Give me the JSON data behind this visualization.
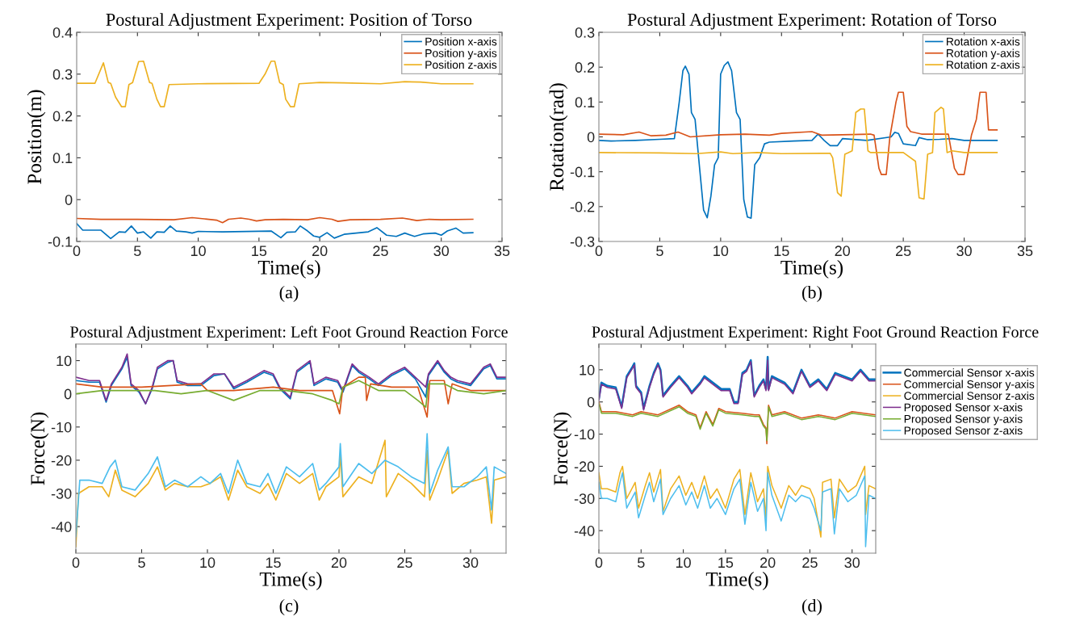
{
  "chart_data": [
    {
      "type": "line",
      "title": "Postural Adjustment Experiment: Position of Torso",
      "xlabel": "Time(s)",
      "ylabel": "Position(m)",
      "xlim": [
        0,
        35
      ],
      "ylim": [
        -0.1,
        0.4
      ],
      "xticks": [
        0,
        5,
        10,
        15,
        20,
        25,
        30,
        35
      ],
      "yticks": [
        -0.1,
        0,
        0.1,
        0.2,
        0.3,
        0.4
      ],
      "legend": "top right",
      "annotations": [
        "(a)"
      ],
      "series": [
        {
          "name": "Position x-axis",
          "color": "#0072bd",
          "x": [
            0,
            0.5,
            2,
            2.8,
            3.5,
            4.0,
            4.5,
            5.0,
            5.5,
            6.1,
            6.6,
            7.2,
            7.7,
            8.2,
            9,
            9.5,
            10,
            12,
            14,
            16,
            16.8,
            17.3,
            18.0,
            18.4,
            19,
            19.5,
            20.0,
            20.6,
            21.2,
            22,
            23,
            24,
            24.7,
            25.5,
            26.3,
            27,
            27.8,
            28.5,
            29.5,
            30,
            30.5,
            31.2,
            31.8,
            32.6
          ],
          "values": [
            -0.057,
            -0.073,
            -0.073,
            -0.093,
            -0.077,
            -0.078,
            -0.063,
            -0.08,
            -0.077,
            -0.092,
            -0.077,
            -0.078,
            -0.063,
            -0.075,
            -0.077,
            -0.08,
            -0.076,
            -0.077,
            -0.076,
            -0.075,
            -0.091,
            -0.078,
            -0.077,
            -0.063,
            -0.075,
            -0.087,
            -0.09,
            -0.079,
            -0.092,
            -0.083,
            -0.08,
            -0.077,
            -0.067,
            -0.085,
            -0.088,
            -0.08,
            -0.088,
            -0.082,
            -0.08,
            -0.085,
            -0.075,
            -0.068,
            -0.08,
            -0.079
          ]
        },
        {
          "name": "Position y-axis",
          "color": "#d95319",
          "x": [
            0,
            2,
            5,
            8,
            9.5,
            10.5,
            11.5,
            12,
            12.5,
            13.5,
            14.2,
            14.8,
            15.5,
            17,
            19,
            20,
            21,
            21.5,
            22.5,
            25,
            26.8,
            28,
            29,
            30,
            32.6
          ],
          "values": [
            -0.045,
            -0.047,
            -0.047,
            -0.048,
            -0.043,
            -0.046,
            -0.049,
            -0.055,
            -0.047,
            -0.044,
            -0.047,
            -0.051,
            -0.048,
            -0.047,
            -0.048,
            -0.043,
            -0.047,
            -0.052,
            -0.048,
            -0.047,
            -0.044,
            -0.05,
            -0.047,
            -0.048,
            -0.047
          ]
        },
        {
          "name": "Position z-axis",
          "color": "#edb120",
          "x": [
            0,
            1.5,
            2.2,
            2.6,
            2.8,
            3.2,
            3.7,
            4.0,
            4.3,
            4.6,
            5.1,
            5.5,
            6.0,
            6.2,
            6.6,
            6.9,
            7.2,
            7.6,
            10,
            15,
            15.5,
            16.0,
            16.3,
            16.7,
            17.0,
            17.2,
            17.6,
            17.9,
            18.3,
            20,
            22,
            25,
            27,
            28.3,
            30,
            32.6
          ],
          "values": [
            0.278,
            0.278,
            0.327,
            0.28,
            0.278,
            0.245,
            0.222,
            0.222,
            0.275,
            0.28,
            0.33,
            0.331,
            0.28,
            0.278,
            0.24,
            0.222,
            0.222,
            0.275,
            0.277,
            0.278,
            0.3,
            0.331,
            0.331,
            0.28,
            0.275,
            0.24,
            0.222,
            0.222,
            0.277,
            0.28,
            0.279,
            0.277,
            0.282,
            0.281,
            0.277,
            0.277
          ]
        }
      ]
    },
    {
      "type": "line",
      "title": "Postural Adjustment Experiment: Rotation of Torso",
      "xlabel": "Time(s)",
      "ylabel": "Rotation(rad)",
      "xlim": [
        0,
        35
      ],
      "ylim": [
        -0.3,
        0.3
      ],
      "xticks": [
        0,
        5,
        10,
        15,
        20,
        25,
        30,
        35
      ],
      "yticks": [
        -0.3,
        -0.2,
        -0.1,
        0,
        0.1,
        0.2,
        0.3
      ],
      "legend": "top right",
      "annotations": [
        "(b)"
      ],
      "series": [
        {
          "name": "Rotation x-axis",
          "color": "#0072bd",
          "x": [
            0,
            1,
            3,
            5,
            6.2,
            6.6,
            6.9,
            7.1,
            7.4,
            7.6,
            7.9,
            8.3,
            8.6,
            8.9,
            9.2,
            9.5,
            9.8,
            10.0,
            10.3,
            10.6,
            10.9,
            11.3,
            11.6,
            11.9,
            12.2,
            12.5,
            12.8,
            13.2,
            13.6,
            14,
            16,
            17.5,
            18.0,
            18.5,
            19,
            19.6,
            20.0,
            22,
            24,
            24.3,
            24.6,
            25,
            26,
            26.3,
            27,
            28,
            29,
            30,
            32.7
          ],
          "values": [
            -0.01,
            -0.012,
            -0.01,
            -0.007,
            -0.005,
            0.1,
            0.19,
            0.203,
            0.18,
            0.07,
            0.05,
            -0.1,
            -0.21,
            -0.232,
            -0.17,
            -0.08,
            -0.06,
            0.18,
            0.205,
            0.215,
            0.19,
            0.07,
            0.05,
            -0.18,
            -0.23,
            -0.233,
            -0.08,
            -0.06,
            -0.02,
            -0.015,
            -0.012,
            -0.01,
            0.008,
            -0.01,
            -0.025,
            -0.025,
            -0.005,
            -0.01,
            0.0,
            0.013,
            0.01,
            -0.02,
            -0.025,
            -0.002,
            -0.008,
            -0.007,
            -0.005,
            -0.01,
            -0.01
          ]
        },
        {
          "name": "Rotation y-axis",
          "color": "#d95319",
          "x": [
            0,
            2,
            3.3,
            4.3,
            5.5,
            6.5,
            7.5,
            10,
            12,
            14,
            15,
            17.5,
            18.3,
            20,
            22.3,
            22.6,
            23.0,
            23.2,
            23.6,
            23.9,
            24.4,
            24.6,
            25.0,
            25.3,
            25.6,
            26.5,
            28,
            28.7,
            29.2,
            29.5,
            30.0,
            30.3,
            30.6,
            31.0,
            31.3,
            31.8,
            32.0,
            32.7
          ],
          "values": [
            0.008,
            0.006,
            0.014,
            0.003,
            0.005,
            0.014,
            0.0,
            0.006,
            0.008,
            0.005,
            0.01,
            0.015,
            0.005,
            0.006,
            0.008,
            0.005,
            -0.09,
            -0.108,
            -0.108,
            0.0,
            0.1,
            0.128,
            0.128,
            0.03,
            0.015,
            0.008,
            0.008,
            0.008,
            -0.09,
            -0.108,
            -0.108,
            -0.05,
            0.005,
            0.05,
            0.128,
            0.128,
            0.02,
            0.02
          ]
        },
        {
          "name": "Rotation z-axis",
          "color": "#edb120",
          "x": [
            0,
            5,
            8,
            10,
            11,
            13,
            15,
            19,
            19.2,
            19.6,
            19.9,
            20.2,
            20.5,
            20.8,
            21.1,
            21.5,
            21.8,
            22.1,
            22.3,
            24,
            25,
            26.0,
            26.3,
            26.7,
            27.0,
            27.4,
            27.6,
            28.1,
            28.3,
            28.6,
            29,
            30,
            32.7
          ],
          "values": [
            -0.045,
            -0.046,
            -0.048,
            -0.043,
            -0.048,
            -0.045,
            -0.048,
            -0.047,
            -0.06,
            -0.16,
            -0.17,
            -0.05,
            -0.045,
            -0.04,
            0.07,
            0.08,
            0.08,
            -0.04,
            -0.045,
            -0.045,
            -0.045,
            -0.07,
            -0.175,
            -0.178,
            -0.05,
            -0.045,
            0.07,
            0.085,
            0.08,
            -0.045,
            -0.04,
            -0.045,
            -0.045
          ]
        }
      ]
    },
    {
      "type": "line",
      "title": "Postural Adjustment Experiment: Left Foot Ground Reaction Force",
      "xlabel": "Time(s)",
      "ylabel": "Force(N)",
      "xlim": [
        0,
        32.7
      ],
      "ylim": [
        -48,
        15
      ],
      "xticks": [
        0,
        5,
        10,
        15,
        20,
        25,
        30
      ],
      "yticks": [
        -40,
        -30,
        -20,
        -10,
        0,
        10
      ],
      "annotations": [
        "(c)"
      ],
      "series": [
        {
          "color": "#0072bd",
          "x": [
            0,
            1,
            1.8,
            2.3,
            2.7,
            3.5,
            3.9,
            4.2,
            4.8,
            5.3,
            5.8,
            6.2,
            7,
            7.4,
            7.7,
            8.5,
            9.5,
            10.5,
            11.3,
            12,
            13,
            14.3,
            15,
            15.5,
            16.3,
            16.8,
            17.8,
            18.1,
            19,
            19.9,
            20.3,
            21.0,
            21.5,
            22.3,
            23,
            24.0,
            25,
            25.8,
            26.6,
            26.8,
            27.5,
            28,
            28.5,
            29.0,
            30,
            31.0,
            31.5,
            32,
            32.7
          ],
          "values": [
            4,
            3.5,
            3.5,
            -2.5,
            2.5,
            7.5,
            11,
            2.5,
            0.5,
            -3,
            1.5,
            7.5,
            9.5,
            10,
            3.5,
            2.5,
            2.5,
            5.5,
            6,
            1.5,
            3.5,
            6.5,
            5.5,
            1.5,
            -1.5,
            6.5,
            9.5,
            2.5,
            4.5,
            3.5,
            0.5,
            8.5,
            6.5,
            4.5,
            2.5,
            5.5,
            7.5,
            4.5,
            -1,
            5.5,
            9.5,
            6.5,
            4.5,
            3.5,
            2.5,
            7.5,
            8.5,
            4.5,
            4.5
          ]
        },
        {
          "color": "#7e2f8e",
          "x": [
            0,
            1,
            1.8,
            2.3,
            2.7,
            3.5,
            3.9,
            4.2,
            4.8,
            5.3,
            5.8,
            6.2,
            7,
            7.4,
            7.7,
            8.5,
            9.5,
            10.5,
            11.3,
            12,
            13,
            14.3,
            15,
            15.5,
            16.3,
            16.8,
            17.8,
            18.1,
            19,
            19.9,
            20.3,
            21.0,
            21.5,
            22.3,
            23,
            24.0,
            25,
            25.8,
            26.6,
            26.8,
            27.5,
            28,
            28.5,
            29.0,
            30,
            31.0,
            31.5,
            32,
            32.7
          ],
          "values": [
            5,
            4,
            4,
            -2,
            3,
            8,
            12,
            3,
            1,
            -3,
            2,
            8,
            10,
            10,
            4,
            3,
            3,
            6,
            6,
            2,
            4,
            7,
            6,
            2,
            -1,
            7,
            10,
            3,
            5,
            4,
            1,
            9,
            7,
            5,
            3,
            6,
            8,
            5,
            2,
            6,
            10,
            7,
            5,
            4,
            3,
            8,
            9,
            5,
            5
          ]
        },
        {
          "color": "#d95319",
          "x": [
            0,
            2,
            5,
            9.5,
            10,
            12,
            15,
            17,
            19.5,
            20.05,
            20.3,
            21.5,
            22,
            22.1,
            22.4,
            24,
            26,
            26.7,
            26.9,
            28,
            28.3,
            28.6,
            30,
            32.7
          ],
          "values": [
            3,
            2,
            2,
            3,
            1,
            1,
            2,
            1,
            1,
            -6,
            2,
            5,
            5,
            -2,
            3,
            2,
            2,
            -7,
            4,
            4,
            -3,
            3,
            1,
            1
          ]
        },
        {
          "color": "#77ac30",
          "x": [
            0,
            2,
            4,
            6,
            8,
            10,
            12,
            14,
            16,
            18,
            19.5,
            20,
            20.3,
            21.5,
            22,
            23,
            25,
            26,
            26.6,
            26.8,
            28,
            29,
            31,
            32.7
          ],
          "values": [
            0,
            1,
            1,
            1,
            0,
            1,
            -2,
            1,
            1,
            0,
            -2,
            -3,
            2,
            4,
            3,
            1,
            1,
            -2,
            -4,
            3,
            3,
            1,
            0,
            1
          ]
        },
        {
          "color": "#edb120",
          "x": [
            0,
            0.2,
            1,
            2,
            2.5,
            3,
            3.5,
            4.5,
            5.5,
            6.2,
            6.8,
            7.5,
            8.5,
            9.5,
            10.2,
            11,
            11.6,
            12.3,
            13,
            14,
            14.6,
            15.2,
            16.0,
            17,
            18,
            18.5,
            19,
            20,
            20.1,
            20.3,
            21.5,
            22.5,
            23.5,
            23.6,
            24.5,
            25.5,
            26.5,
            26.7,
            26.9,
            27.5,
            28.3,
            28.6,
            29.5,
            30.5,
            31.2,
            31.6,
            31.8,
            32.7
          ],
          "values": [
            -46,
            -30,
            -28,
            -28,
            -31,
            -23,
            -29,
            -31,
            -27,
            -22,
            -29,
            -27,
            -28,
            -28,
            -27,
            -25,
            -32,
            -23,
            -28,
            -30,
            -27,
            -32,
            -24,
            -27,
            -24,
            -32,
            -28,
            -25,
            -18,
            -31,
            -25,
            -27,
            -14,
            -31,
            -24,
            -27,
            -31,
            -17,
            -32,
            -26,
            -17,
            -30,
            -27,
            -26,
            -25,
            -39,
            -26,
            -25
          ]
        },
        {
          "color": "#4dbeee",
          "x": [
            0,
            0.3,
            1,
            2,
            2.6,
            3,
            3.5,
            4.5,
            5.5,
            6.2,
            6.8,
            7.5,
            8.5,
            9.5,
            10.2,
            11,
            11.6,
            12.3,
            13,
            14,
            14.6,
            15.2,
            16.0,
            17,
            18,
            18.5,
            19,
            20,
            20.1,
            20.3,
            21.5,
            22.5,
            23.5,
            24.5,
            25.5,
            26.5,
            26.7,
            26.9,
            27.5,
            28.3,
            28.6,
            29.5,
            30.5,
            31.2,
            31.6,
            31.8,
            32.7
          ],
          "values": [
            -43,
            -26,
            -26,
            -27,
            -22,
            -20,
            -28,
            -29,
            -24,
            -19,
            -28,
            -26,
            -28,
            -25,
            -27,
            -24,
            -30,
            -20,
            -27,
            -28,
            -24,
            -30,
            -22,
            -25,
            -21,
            -29,
            -27,
            -22,
            -15,
            -28,
            -21,
            -24,
            -20,
            -22,
            -25,
            -27,
            -12,
            -30,
            -23,
            -16,
            -28,
            -28,
            -25,
            -22,
            -35,
            -22,
            -24
          ]
        }
      ]
    },
    {
      "type": "line",
      "title": "Postural Adjustment Experiment: Right Foot Ground Reaction Force",
      "xlabel": "Time(s)",
      "ylabel": "Force(N)",
      "xlim": [
        0,
        32.8
      ],
      "ylim": [
        -47,
        18
      ],
      "xticks": [
        0,
        5,
        10,
        15,
        20,
        25,
        30
      ],
      "yticks": [
        -40,
        -30,
        -20,
        -10,
        0,
        10
      ],
      "legend": "right",
      "annotations": [
        "(d)"
      ],
      "series": [
        {
          "name": "Commercial Sensor x-axis",
          "color": "#0072bd",
          "x": [
            0,
            0.3,
            1,
            2,
            2.7,
            3.3,
            4,
            4.2,
            4.4,
            5,
            5.3,
            6.0,
            6.5,
            7,
            7.3,
            7.6,
            8.5,
            9.5,
            10.5,
            11,
            12,
            12.5,
            13.5,
            14.5,
            15.5,
            16.0,
            16.5,
            17.0,
            17.5,
            18.0,
            18.4,
            19,
            19.5,
            19.8,
            20.0,
            20.1,
            20.5,
            22,
            23,
            24,
            25,
            26,
            27,
            28,
            29,
            30,
            31,
            32,
            32.8
          ],
          "values": [
            1,
            6,
            5,
            4.5,
            -1.5,
            8,
            11,
            12,
            5,
            3,
            -2,
            5,
            9,
            12,
            10,
            2,
            5,
            8,
            5,
            3,
            6,
            8,
            6,
            4,
            4,
            0,
            0,
            9,
            10,
            13,
            2,
            5,
            7,
            4,
            14,
            4,
            8,
            6,
            3,
            10,
            5,
            7,
            4,
            9,
            8,
            7,
            10,
            7,
            7
          ]
        },
        {
          "name": "Commercial Sensor y-axis",
          "color": "#d95319",
          "x": [
            0,
            0.3,
            2,
            4,
            5,
            7,
            9.5,
            10.5,
            11.5,
            12,
            12.7,
            13.5,
            14.2,
            15,
            17,
            18.5,
            19,
            19.5,
            19.8,
            19.9,
            20.1,
            20.5,
            22,
            24,
            26,
            28,
            30,
            32.8
          ],
          "values": [
            0,
            -3,
            -3,
            -4,
            -3,
            -4,
            -1,
            -3,
            -4,
            -8,
            -3,
            -7,
            -2,
            -3,
            -3.5,
            -4,
            -4,
            -7,
            -8,
            -13,
            -1,
            -4,
            -3,
            -5,
            -4,
            -5,
            -3,
            -4
          ]
        },
        {
          "name": "Commercial Sensor z-axis",
          "color": "#edb120",
          "x": [
            0,
            0.3,
            1,
            2,
            2.5,
            2.8,
            3.3,
            4.3,
            4.7,
            5.5,
            6.0,
            6.5,
            7.3,
            7.6,
            8.5,
            9.5,
            10.3,
            11,
            11.7,
            12.5,
            13.2,
            14,
            15,
            16,
            16.7,
            17.3,
            18,
            18.8,
            19.5,
            19.8,
            20.0,
            20.5,
            21.6,
            22.5,
            23.3,
            24,
            25,
            25.5,
            26.3,
            26.5,
            27.5,
            27.9,
            28.5,
            29.5,
            30.5,
            31.5,
            31.6,
            32,
            32.8
          ],
          "values": [
            -22,
            -27,
            -27,
            -28,
            -22,
            -20,
            -30,
            -25,
            -33,
            -26,
            -22,
            -28,
            -21,
            -34,
            -27,
            -23,
            -29,
            -25,
            -30,
            -23,
            -30,
            -27,
            -33,
            -24,
            -21,
            -35,
            -22,
            -31,
            -27,
            -36,
            -20,
            -26,
            -33,
            -26,
            -29,
            -26,
            -27,
            -30,
            -42,
            -25,
            -24,
            -36,
            -24,
            -28,
            -26,
            -20,
            -35,
            -26,
            -27
          ]
        },
        {
          "name": "Proposed Sensor x-axis",
          "color": "#7e2f8e",
          "x": [
            0,
            0.3,
            1,
            2,
            2.7,
            3.3,
            4,
            4.2,
            4.4,
            5,
            5.3,
            6.0,
            6.5,
            7,
            7.3,
            7.6,
            8.5,
            9.5,
            10.5,
            11,
            12,
            12.5,
            13.5,
            14.5,
            15.5,
            16.0,
            16.5,
            17.0,
            17.5,
            18.0,
            18.4,
            19,
            19.5,
            19.8,
            20.0,
            20.1,
            20.5,
            22,
            23,
            24,
            25,
            26,
            27,
            28,
            29,
            30,
            31,
            32,
            32.8
          ],
          "values": [
            0.5,
            5.5,
            4.5,
            4,
            -2,
            7.5,
            10.5,
            11.5,
            4.5,
            2.5,
            -2.5,
            4.5,
            8.5,
            11.5,
            9.5,
            1.5,
            4.5,
            7.5,
            4.5,
            2.5,
            5.5,
            7.5,
            5.5,
            3.5,
            3.5,
            -0.5,
            -0.5,
            8.5,
            9.5,
            12.5,
            1.5,
            4.5,
            6.5,
            3.5,
            13,
            3.5,
            7.5,
            5.5,
            2.5,
            9.5,
            4.5,
            6.5,
            3.5,
            8.5,
            7.5,
            6.5,
            9.5,
            6.5,
            6.5
          ]
        },
        {
          "name": "Proposed Sensor y-axis",
          "color": "#77ac30",
          "x": [
            0,
            0.3,
            2,
            4,
            5,
            7,
            9.5,
            10.5,
            11.5,
            12,
            12.7,
            13.5,
            14.2,
            15,
            17,
            18.5,
            19,
            19.5,
            19.8,
            19.9,
            20.1,
            20.5,
            22,
            24,
            26,
            28,
            30,
            32.8
          ],
          "values": [
            -0.5,
            -3.5,
            -3.5,
            -4.5,
            -3.5,
            -4.5,
            -1.5,
            -3.5,
            -4.5,
            -8.5,
            -3.5,
            -7.5,
            -2.5,
            -3.5,
            -4,
            -4.5,
            -4.5,
            -7.5,
            -8.5,
            -12,
            -1.5,
            -4.5,
            -3.5,
            -5.5,
            -4.5,
            -5.5,
            -3.5,
            -4.5
          ]
        },
        {
          "name": "Proposed Sensor z-axis",
          "color": "#4dbeee",
          "x": [
            0,
            0.3,
            1,
            2,
            2.5,
            2.8,
            3.3,
            4.3,
            4.7,
            5.5,
            6.0,
            6.5,
            7.3,
            7.6,
            8.5,
            9.5,
            10.3,
            11,
            11.7,
            12.5,
            13.2,
            14,
            15,
            16,
            16.7,
            17.3,
            18,
            18.8,
            19.5,
            19.8,
            20.0,
            20.5,
            21.6,
            22.5,
            23.3,
            24,
            25,
            25.5,
            26.3,
            26.5,
            27.5,
            27.9,
            28.5,
            29.5,
            30.5,
            31.5,
            31.6,
            32,
            32.8
          ],
          "values": [
            -25,
            -30,
            -30,
            -31,
            -25,
            -22,
            -33,
            -28,
            -36,
            -29,
            -25,
            -31,
            -24,
            -35,
            -30,
            -26,
            -32,
            -28,
            -33,
            -26,
            -33,
            -30,
            -35,
            -27,
            -24,
            -38,
            -25,
            -34,
            -30,
            -40,
            -22,
            -29,
            -37,
            -29,
            -31,
            -29,
            -30,
            -33,
            -40,
            -28,
            -27,
            -41,
            -27,
            -31,
            -29,
            -23,
            -45,
            -29,
            -30
          ]
        }
      ]
    }
  ]
}
